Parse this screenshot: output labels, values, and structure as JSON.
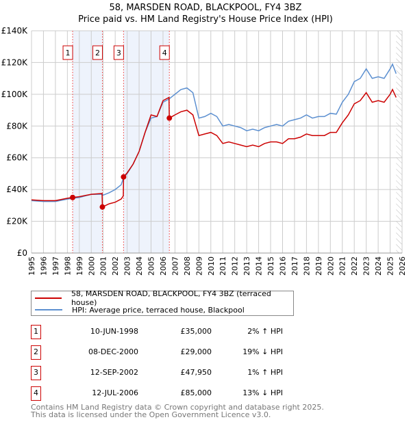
{
  "chart_data": {
    "type": "line",
    "title": "58, MARSDEN ROAD, BLACKPOOL, FY4 3BZ",
    "subtitle": "Price paid vs. HM Land Registry's House Price Index (HPI)",
    "xlim": [
      1995,
      2026
    ],
    "ylim": [
      0,
      140000
    ],
    "yticks": [
      {
        "v": 0,
        "label": "£0"
      },
      {
        "v": 20000,
        "label": "£20K"
      },
      {
        "v": 40000,
        "label": "£40K"
      },
      {
        "v": 60000,
        "label": "£60K"
      },
      {
        "v": 80000,
        "label": "£80K"
      },
      {
        "v": 100000,
        "label": "£100K"
      },
      {
        "v": 120000,
        "label": "£120K"
      },
      {
        "v": 140000,
        "label": "£140K"
      }
    ],
    "xticks": [
      "1995",
      "1996",
      "1997",
      "1998",
      "1999",
      "2000",
      "2001",
      "2002",
      "2003",
      "2004",
      "2005",
      "2006",
      "2007",
      "2008",
      "2009",
      "2010",
      "2011",
      "2012",
      "2013",
      "2014",
      "2015",
      "2016",
      "2017",
      "2018",
      "2019",
      "2020",
      "2021",
      "2022",
      "2023",
      "2024",
      "2025",
      "2026"
    ],
    "shaded_ranges": [
      [
        1998.44,
        2000.93
      ],
      [
        2002.7,
        2006.53
      ]
    ],
    "forecast_hatch_from": 2025.5,
    "series": [
      {
        "name": "58, MARSDEN ROAD, BLACKPOOL, FY4 3BZ (terraced house)",
        "color": "#cc0000",
        "x": [
          1995,
          1996,
          1997,
          1998,
          1998.44,
          1999,
          2000,
          2000.9,
          2000.93,
          2001.5,
          2002,
          2002.5,
          2002.68,
          2002.7,
          2003,
          2003.5,
          2004,
          2004.5,
          2005,
          2005.5,
          2006,
          2006.5,
          2006.53,
          2007,
          2007.5,
          2008,
          2008.5,
          2009,
          2009.5,
          2010,
          2010.5,
          2011,
          2011.5,
          2012,
          2012.5,
          2013,
          2013.5,
          2014,
          2014.5,
          2015,
          2015.5,
          2016,
          2016.5,
          2017,
          2017.5,
          2018,
          2018.5,
          2019,
          2019.5,
          2020,
          2020.5,
          2021,
          2021.5,
          2022,
          2022.5,
          2023,
          2023.5,
          2024,
          2024.5,
          2025,
          2025.2,
          2025.5
        ],
        "y": [
          33500,
          33000,
          33000,
          34500,
          35000,
          35500,
          37000,
          37500,
          29000,
          31000,
          32000,
          34000,
          36000,
          47950,
          50500,
          56000,
          64000,
          76000,
          87000,
          86000,
          96000,
          98000,
          85000,
          87000,
          89000,
          90000,
          87000,
          74000,
          75000,
          76000,
          74000,
          69000,
          70000,
          69000,
          68000,
          67000,
          68000,
          67000,
          69000,
          70000,
          70000,
          69000,
          72000,
          72000,
          73000,
          75000,
          74000,
          74000,
          74000,
          76000,
          76000,
          82000,
          87000,
          94000,
          96000,
          101000,
          95000,
          96000,
          95000,
          100000,
          103000,
          98000
        ]
      },
      {
        "name": "HPI: Average price, terraced house, Blackpool",
        "color": "#5b8fd0",
        "x": [
          1995,
          1996,
          1997,
          1998,
          1998.5,
          1999,
          2000,
          2000.9,
          2001,
          2001.5,
          2002,
          2002.5,
          2002.7,
          2003,
          2003.5,
          2004,
          2004.5,
          2005,
          2005.5,
          2006,
          2006.5,
          2007,
          2007.5,
          2008,
          2008.5,
          2009,
          2009.5,
          2010,
          2010.5,
          2011,
          2011.5,
          2012,
          2012.5,
          2013,
          2013.5,
          2014,
          2014.5,
          2015,
          2015.5,
          2016,
          2016.5,
          2017,
          2017.5,
          2018,
          2018.5,
          2019,
          2019.5,
          2020,
          2020.5,
          2021,
          2021.5,
          2022,
          2022.5,
          2023,
          2023.5,
          2024,
          2024.5,
          2025,
          2025.2,
          2025.5
        ],
        "y": [
          33000,
          32500,
          32500,
          34000,
          34500,
          35000,
          37000,
          37000,
          36500,
          38000,
          40000,
          43000,
          47500,
          50000,
          56000,
          64000,
          76000,
          85000,
          86000,
          95000,
          97000,
          100000,
          103000,
          104000,
          101000,
          85000,
          86000,
          88000,
          86000,
          80000,
          81000,
          80000,
          79000,
          77000,
          78000,
          77000,
          79000,
          80000,
          81000,
          80000,
          83000,
          84000,
          85000,
          87000,
          85000,
          86000,
          86000,
          88000,
          87500,
          95000,
          100000,
          108000,
          110000,
          116000,
          110000,
          111000,
          110000,
          116000,
          119000,
          113000
        ]
      }
    ],
    "sales": [
      {
        "n": "1",
        "x": 1998.44,
        "y": 35000
      },
      {
        "n": "2",
        "x": 2000.93,
        "y": 29000
      },
      {
        "n": "3",
        "x": 2002.7,
        "y": 47950
      },
      {
        "n": "4",
        "x": 2006.53,
        "y": 85000
      }
    ]
  },
  "legend": {
    "property": "58, MARSDEN ROAD, BLACKPOOL, FY4 3BZ (terraced house)",
    "hpi": "HPI: Average price, terraced house, Blackpool"
  },
  "transactions": [
    {
      "n": "1",
      "date": "10-JUN-1998",
      "price": "£35,000",
      "hpi": "2% ↑ HPI"
    },
    {
      "n": "2",
      "date": "08-DEC-2000",
      "price": "£29,000",
      "hpi": "19% ↓ HPI"
    },
    {
      "n": "3",
      "date": "12-SEP-2002",
      "price": "£47,950",
      "hpi": "1% ↑ HPI"
    },
    {
      "n": "4",
      "date": "12-JUL-2006",
      "price": "£85,000",
      "hpi": "13% ↓ HPI"
    }
  ],
  "footer": {
    "line1": "Contains HM Land Registry data © Crown copyright and database right 2025.",
    "line2": "This data is licensed under the Open Government Licence v3.0."
  }
}
